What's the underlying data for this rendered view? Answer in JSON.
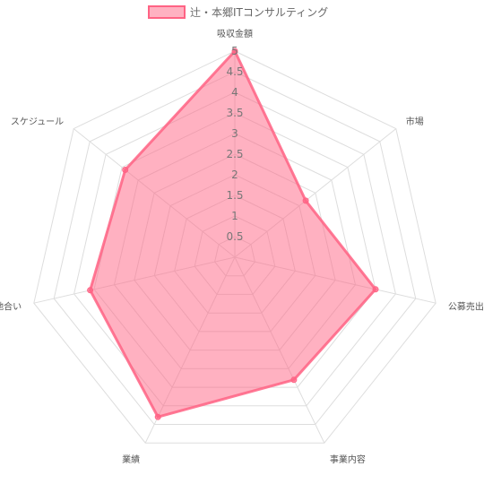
{
  "chart_data": {
    "type": "radar",
    "title": "",
    "categories": [
      "吸収金額",
      "市場",
      "公募売出比",
      "事業内容",
      "業績",
      "地合い",
      "スケジュール"
    ],
    "series": [
      {
        "name": "辻・本郷ITコンサルティング",
        "values": [
          5,
          2.2,
          3.5,
          3.3,
          4.3,
          3.6,
          3.4
        ],
        "fill_color": "#ff6384",
        "fill_opacity": 0.5,
        "line_color": "#ff6384"
      }
    ],
    "rlim": [
      0,
      5
    ],
    "ticks": [
      "0.5",
      "1",
      "1.5",
      "2",
      "2.5",
      "3",
      "3.5",
      "4",
      "4.5",
      "5"
    ],
    "legend_position": "top",
    "grid": true,
    "grid_color": "#dddddd"
  }
}
